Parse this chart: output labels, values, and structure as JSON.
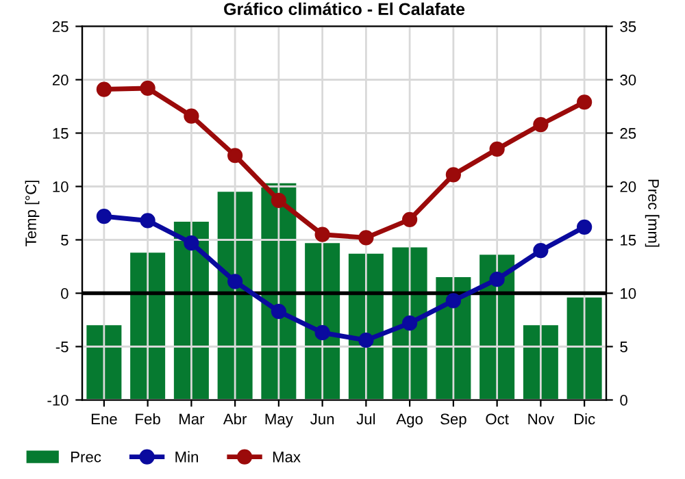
{
  "chart_data": {
    "type": "bar",
    "title": "Gráfico climático - El Calafate",
    "categories": [
      "Ene",
      "Feb",
      "Mar",
      "Abr",
      "May",
      "Jun",
      "Jul",
      "Ago",
      "Sep",
      "Oct",
      "Nov",
      "Dic"
    ],
    "series": [
      {
        "name": "Prec",
        "axis": "y2",
        "color": "#067a30",
        "values": [
          7.0,
          13.8,
          16.7,
          19.5,
          20.3,
          14.7,
          13.7,
          14.3,
          11.5,
          13.6,
          7.0,
          9.6
        ]
      },
      {
        "name": "Min",
        "type": "line",
        "axis": "y",
        "color": "#0a0a9e",
        "values": [
          7.2,
          6.8,
          4.7,
          1.1,
          -1.7,
          -3.7,
          -4.4,
          -2.8,
          -0.7,
          1.3,
          4.0,
          6.2
        ]
      },
      {
        "name": "Max",
        "type": "line",
        "axis": "y",
        "color": "#9b0a0a",
        "values": [
          19.1,
          19.2,
          16.6,
          12.9,
          8.7,
          5.5,
          5.2,
          6.9,
          11.1,
          13.5,
          15.8,
          17.9
        ]
      }
    ],
    "ylabel": "Temp [°C]",
    "y2label": "Prec [mm]",
    "ylim": [
      -10,
      25
    ],
    "yticks": [
      -10,
      -5,
      0,
      5,
      10,
      15,
      20,
      25
    ],
    "y2lim": [
      0,
      35
    ],
    "y2ticks": [
      0,
      5,
      10,
      15,
      20,
      25,
      30,
      35
    ],
    "ref_lines": [
      {
        "axis": "y",
        "value": 0,
        "color": "#000000"
      }
    ],
    "grid": true,
    "legend": "bottom left",
    "marker": "circle"
  }
}
